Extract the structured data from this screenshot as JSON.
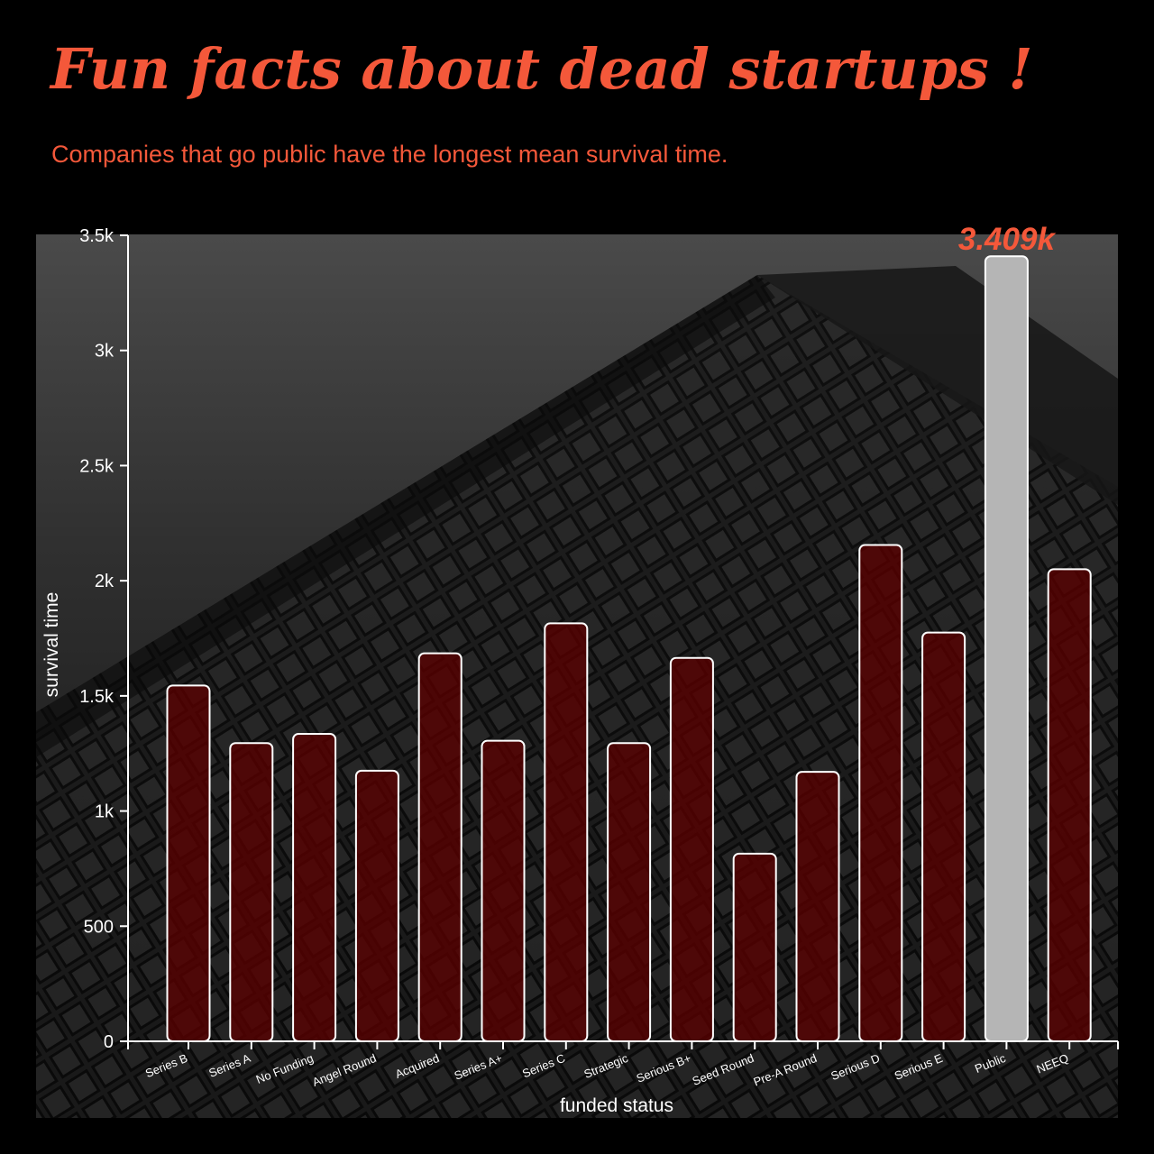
{
  "title": "Fun facts about dead startups !",
  "subtitle": "Companies that go public have the longest mean survival time.",
  "colors": {
    "accent": "#f4583a",
    "bar": "#5a0000",
    "highlight_bar": "#b5b5b5",
    "bar_outline": "#ffffff"
  },
  "chart_data": {
    "type": "bar",
    "xlabel": "funded status",
    "ylabel": "survival time",
    "ylim": [
      0,
      3500
    ],
    "yticks": [
      {
        "value": 0,
        "label": "0"
      },
      {
        "value": 500,
        "label": "500"
      },
      {
        "value": 1000,
        "label": "1k"
      },
      {
        "value": 1500,
        "label": "1.5k"
      },
      {
        "value": 2000,
        "label": "2k"
      },
      {
        "value": 2500,
        "label": "2.5k"
      },
      {
        "value": 3000,
        "label": "3k"
      },
      {
        "value": 3500,
        "label": "3.5k"
      }
    ],
    "categories": [
      "Series B",
      "Series A",
      "No Funding",
      "Angel Round",
      "Acquired",
      "Series A+",
      "Series C",
      "Strategic",
      "Serious B+",
      "Seed Round",
      "Pre-A Round",
      "Serious D",
      "Serious E",
      "Public",
      "NEEQ"
    ],
    "values": [
      1545,
      1295,
      1335,
      1175,
      1685,
      1305,
      1815,
      1295,
      1665,
      815,
      1170,
      2155,
      1775,
      3409,
      2050
    ],
    "highlight": {
      "category": "Public",
      "label": "3.409k"
    },
    "grid": false
  }
}
